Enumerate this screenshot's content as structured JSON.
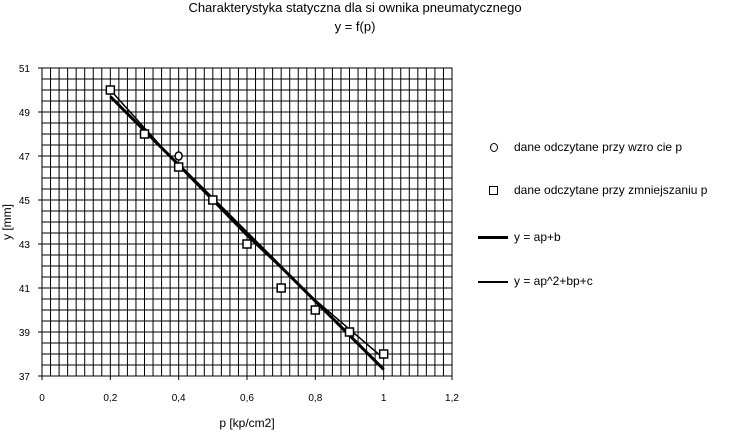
{
  "chart_data": {
    "type": "scatter",
    "title": "Charakterystyka statyczna dla si ownika pneumatycznego",
    "subtitle": "y = f(p)",
    "xlabel": "p [kp/cm2]",
    "ylabel": "y [mm]",
    "xlim": [
      0,
      1.2
    ],
    "ylim": [
      37,
      51
    ],
    "x_ticks": [
      "0",
      "0,2",
      "0,4",
      "0,6",
      "0,8",
      "1",
      "1,2"
    ],
    "y_ticks": [
      "37",
      "39",
      "41",
      "43",
      "45",
      "47",
      "49",
      "51"
    ],
    "grid": true,
    "legend_position": "right",
    "series": [
      {
        "name": "dane odczytane przy wzro  cie p",
        "marker": "circle",
        "points": [
          [
            0.2,
            50
          ],
          [
            0.3,
            48
          ],
          [
            0.4,
            47
          ],
          [
            0.5,
            45
          ],
          [
            0.6,
            43
          ],
          [
            0.7,
            41
          ],
          [
            0.8,
            40
          ],
          [
            0.9,
            39
          ],
          [
            1.0,
            38
          ]
        ]
      },
      {
        "name": "dane odczytane przy zmniejszaniu p",
        "marker": "square",
        "points": [
          [
            0.2,
            50
          ],
          [
            0.3,
            48
          ],
          [
            0.4,
            46.5
          ],
          [
            0.5,
            45
          ],
          [
            0.6,
            43
          ],
          [
            0.7,
            41
          ],
          [
            0.8,
            40
          ],
          [
            0.9,
            39
          ],
          [
            1.0,
            38
          ]
        ]
      },
      {
        "name": "y = ap+b",
        "type": "line",
        "points": [
          [
            0.2,
            49.7
          ],
          [
            1.0,
            37.3
          ]
        ]
      },
      {
        "name": "y = ap^2+bp+c",
        "type": "line",
        "points": [
          [
            0.2,
            50.0
          ],
          [
            0.4,
            46.55
          ],
          [
            0.6,
            43.36
          ],
          [
            0.8,
            40.45
          ],
          [
            1.0,
            37.8
          ]
        ]
      }
    ]
  }
}
